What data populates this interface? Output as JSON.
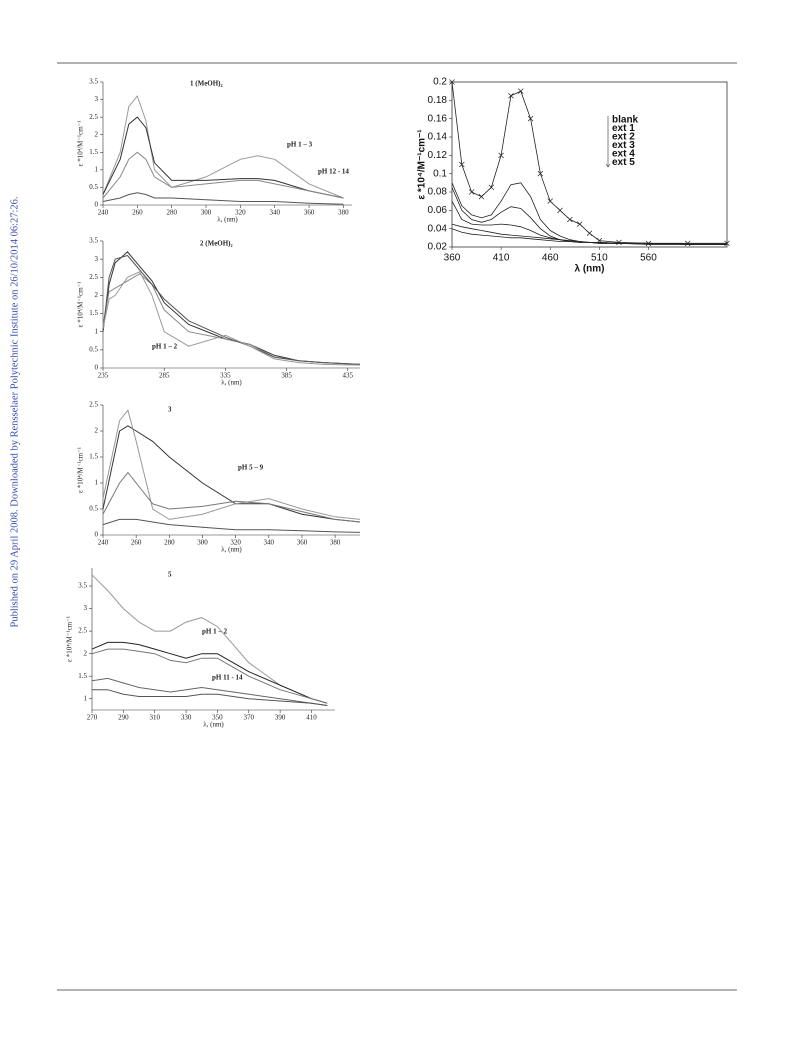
{
  "sidebar": "Published on 29 April 2008. Downloaded by Rensselaer Polytechnic Institute on 26/10/2014 06:27:26.",
  "chart_data": [
    {
      "type": "line",
      "title": "1 (MeOH)₂",
      "x_label": "λ, (nm)",
      "y_label": "ε *10⁴/M⁻¹cm⁻¹",
      "annotations": [
        "pH 1 – 3",
        "pH 12 - 14"
      ],
      "xlim": [
        240,
        385
      ],
      "ylim": [
        0,
        3.5
      ],
      "xticks": [
        240,
        260,
        280,
        300,
        320,
        340,
        360,
        380
      ],
      "yticks": [
        0,
        0.5,
        1,
        1.5,
        2,
        2.5,
        3,
        3.5
      ],
      "x": [
        240,
        250,
        255,
        260,
        265,
        270,
        280,
        300,
        320,
        330,
        340,
        360,
        380
      ],
      "series": [
        {
          "color": "#999999",
          "values": [
            0.3,
            1.5,
            2.8,
            3.1,
            2.4,
            1.0,
            0.5,
            0.8,
            1.3,
            1.4,
            1.3,
            0.6,
            0.2
          ]
        },
        {
          "color": "#333333",
          "values": [
            0.3,
            1.3,
            2.3,
            2.5,
            2.2,
            1.2,
            0.7,
            0.7,
            0.75,
            0.75,
            0.7,
            0.4,
            0.2
          ]
        },
        {
          "color": "#888888",
          "values": [
            0.2,
            0.8,
            1.3,
            1.5,
            1.3,
            0.8,
            0.5,
            0.6,
            0.7,
            0.7,
            0.6,
            0.4,
            0.2
          ]
        },
        {
          "color": "#555555",
          "values": [
            0.1,
            0.2,
            0.3,
            0.35,
            0.3,
            0.2,
            0.2,
            0.15,
            0.1,
            0.1,
            0.1,
            0.05,
            0.02
          ]
        }
      ]
    },
    {
      "type": "line",
      "title": "2 (MeOH)₂",
      "x_label": "λ, (nm)",
      "y_label": "ε *10⁴/M⁻¹cm⁻¹",
      "annotations": [
        "pH 1 – 2"
      ],
      "xlim": [
        235,
        445
      ],
      "ylim": [
        0,
        3.5
      ],
      "xticks": [
        235,
        285,
        335,
        385,
        435
      ],
      "yticks": [
        0,
        0.5,
        1,
        1.5,
        2,
        2.5,
        3,
        3.5
      ],
      "x": [
        235,
        240,
        245,
        255,
        265,
        275,
        285,
        305,
        335,
        355,
        375,
        395,
        415,
        445
      ],
      "series": [
        {
          "color": "#333333",
          "values": [
            1.0,
            2.3,
            2.9,
            3.2,
            2.8,
            2.4,
            1.8,
            1.2,
            0.8,
            0.65,
            0.35,
            0.2,
            0.15,
            0.1
          ]
        },
        {
          "color": "#888888",
          "values": [
            1.2,
            2.1,
            2.2,
            2.4,
            2.6,
            2.3,
            1.6,
            1.0,
            0.8,
            0.65,
            0.3,
            0.2,
            0.15,
            0.1
          ]
        },
        {
          "color": "#555555",
          "values": [
            1.0,
            2.5,
            3.0,
            3.1,
            2.7,
            2.3,
            1.9,
            1.3,
            0.85,
            0.6,
            0.3,
            0.2,
            0.15,
            0.1
          ]
        },
        {
          "color": "#999999",
          "values": [
            1.1,
            1.9,
            2.0,
            2.5,
            2.65,
            2.0,
            1.0,
            0.6,
            0.9,
            0.6,
            0.25,
            0.15,
            0.1,
            0.08
          ]
        }
      ]
    },
    {
      "type": "line",
      "title": "3",
      "x_label": "λ, (nm)",
      "y_label": "ε *10⁴/M⁻¹cm⁻¹",
      "annotations": [
        "pH 5 – 9"
      ],
      "xlim": [
        240,
        395
      ],
      "ylim": [
        0,
        2.5
      ],
      "xticks": [
        240,
        260,
        280,
        300,
        320,
        340,
        360,
        380
      ],
      "yticks": [
        0,
        0.5,
        1,
        1.5,
        2,
        2.5
      ],
      "x": [
        240,
        250,
        255,
        260,
        270,
        280,
        300,
        320,
        340,
        360,
        380,
        395
      ],
      "series": [
        {
          "color": "#333333",
          "values": [
            0.5,
            2.0,
            2.1,
            2.0,
            1.8,
            1.5,
            1.0,
            0.6,
            0.6,
            0.4,
            0.3,
            0.25
          ]
        },
        {
          "color": "#999999",
          "values": [
            0.7,
            2.2,
            2.4,
            1.8,
            0.5,
            0.3,
            0.4,
            0.6,
            0.7,
            0.5,
            0.35,
            0.3
          ]
        },
        {
          "color": "#777777",
          "values": [
            0.4,
            1.0,
            1.2,
            1.0,
            0.6,
            0.5,
            0.55,
            0.65,
            0.6,
            0.45,
            0.3,
            0.25
          ]
        },
        {
          "color": "#555555",
          "values": [
            0.2,
            0.3,
            0.3,
            0.3,
            0.25,
            0.2,
            0.15,
            0.1,
            0.1,
            0.08,
            0.06,
            0.05
          ]
        }
      ]
    },
    {
      "type": "line",
      "title": "5",
      "x_label": "λ, (nm)",
      "y_label": "ε *10⁴/M⁻¹cm⁻¹",
      "annotations": [
        "pH 1 – 2",
        "pH 11 - 14"
      ],
      "xlim": [
        270,
        425
      ],
      "ylim": [
        0.75,
        3.9
      ],
      "xticks": [
        270,
        290,
        310,
        330,
        350,
        370,
        390,
        410
      ],
      "yticks": [
        1,
        1.5,
        2,
        2.5,
        3,
        3.5
      ],
      "x": [
        270,
        280,
        290,
        300,
        310,
        320,
        330,
        340,
        350,
        360,
        370,
        390,
        410,
        420
      ],
      "series": [
        {
          "color": "#999999",
          "values": [
            3.75,
            3.4,
            3.0,
            2.7,
            2.5,
            2.5,
            2.7,
            2.8,
            2.6,
            2.2,
            1.8,
            1.3,
            1.0,
            0.9
          ]
        },
        {
          "color": "#222222",
          "values": [
            2.1,
            2.25,
            2.25,
            2.2,
            2.1,
            2.0,
            1.9,
            2.0,
            2.0,
            1.8,
            1.6,
            1.3,
            1.0,
            0.9
          ]
        },
        {
          "color": "#777777",
          "values": [
            2.0,
            2.1,
            2.1,
            2.05,
            2.0,
            1.85,
            1.8,
            1.9,
            1.9,
            1.7,
            1.5,
            1.2,
            1.0,
            0.9
          ]
        },
        {
          "color": "#666666",
          "values": [
            1.4,
            1.45,
            1.35,
            1.25,
            1.2,
            1.15,
            1.2,
            1.25,
            1.2,
            1.15,
            1.1,
            1.0,
            0.9,
            0.85
          ]
        },
        {
          "color": "#555555",
          "values": [
            1.2,
            1.2,
            1.1,
            1.05,
            1.05,
            1.05,
            1.05,
            1.1,
            1.1,
            1.05,
            1.0,
            0.95,
            0.9,
            0.85
          ]
        }
      ]
    },
    {
      "type": "line",
      "x_label": "λ (nm)",
      "y_label": "ε *10⁴/M⁻¹cm⁻¹",
      "box": true,
      "legend": "upper-right",
      "xlim": [
        360,
        640
      ],
      "ylim": [
        0.02,
        0.2
      ],
      "xticks": [
        360,
        410,
        460,
        510,
        560
      ],
      "yticks": [
        0.02,
        0.04,
        0.06,
        0.08,
        0.1,
        0.12,
        0.14,
        0.16,
        0.18,
        0.2
      ],
      "x": [
        360,
        370,
        380,
        390,
        400,
        410,
        420,
        430,
        440,
        450,
        460,
        470,
        480,
        490,
        500,
        510,
        530,
        560,
        600,
        640
      ],
      "series": [
        {
          "name": "blank",
          "color": "#222222",
          "values": [
            0.045,
            0.042,
            0.04,
            0.038,
            0.036,
            0.034,
            0.033,
            0.032,
            0.031,
            0.03,
            0.029,
            0.028,
            0.027,
            0.026,
            0.025,
            0.025,
            0.024,
            0.024,
            0.023,
            0.023
          ]
        },
        {
          "name": "ext 1",
          "color": "#222222",
          "marker": "x",
          "values": [
            0.2,
            0.11,
            0.08,
            0.075,
            0.085,
            0.12,
            0.185,
            0.19,
            0.16,
            0.1,
            0.07,
            0.06,
            0.05,
            0.045,
            0.035,
            0.027,
            0.025,
            0.024,
            0.024,
            0.024
          ]
        },
        {
          "name": "ext 2",
          "color": "#222222",
          "values": [
            0.09,
            0.065,
            0.055,
            0.052,
            0.055,
            0.07,
            0.088,
            0.09,
            0.075,
            0.05,
            0.038,
            0.032,
            0.028,
            0.026,
            0.025,
            0.025,
            0.024,
            0.024,
            0.023,
            0.023
          ]
        },
        {
          "name": "ext 3",
          "color": "#222222",
          "values": [
            0.085,
            0.06,
            0.05,
            0.047,
            0.05,
            0.058,
            0.064,
            0.062,
            0.052,
            0.04,
            0.032,
            0.028,
            0.026,
            0.025,
            0.025,
            0.024,
            0.024,
            0.024,
            0.023,
            0.023
          ]
        },
        {
          "name": "ext 4",
          "color": "#222222",
          "values": [
            0.07,
            0.05,
            0.045,
            0.044,
            0.044,
            0.045,
            0.044,
            0.042,
            0.038,
            0.033,
            0.03,
            0.028,
            0.026,
            0.025,
            0.025,
            0.024,
            0.024,
            0.023,
            0.023,
            0.023
          ]
        },
        {
          "name": "ext 5",
          "color": "#222222",
          "values": [
            0.04,
            0.036,
            0.034,
            0.033,
            0.032,
            0.031,
            0.03,
            0.03,
            0.029,
            0.028,
            0.027,
            0.026,
            0.026,
            0.025,
            0.025,
            0.024,
            0.024,
            0.023,
            0.023,
            0.023
          ]
        }
      ]
    }
  ]
}
